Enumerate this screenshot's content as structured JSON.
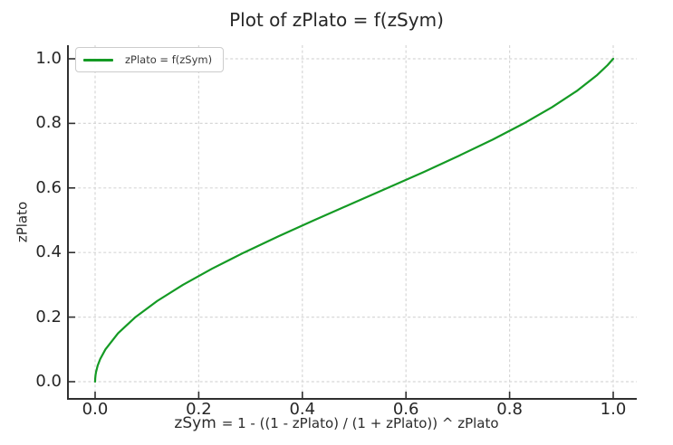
{
  "title": "Plot of zPlato = f(zSym)",
  "legend": {
    "label": "zPlato = f(zSym)"
  },
  "axes": {
    "xlabel_var": "zSym",
    "xlabel_rest": "= 1 - ((1 - zPlato) / (1 + zPlato)) ^ zPlato",
    "ylabel": "zPlato"
  },
  "colors": {
    "line_green": "#149a24",
    "grid": "#d7d7d7",
    "spine": "#303030",
    "tick": "#303030"
  },
  "chart_data": {
    "type": "line",
    "title": "Plot of zPlato = f(zSym)",
    "xlabel": "zSym = 1 - ((1 - zPlato) / (1 + zPlato)) ^ zPlato",
    "ylabel": "zPlato",
    "xlim": [
      -0.052,
      1.045
    ],
    "ylim": [
      -0.053,
      1.042
    ],
    "xticks": [
      0.0,
      0.2,
      0.4,
      0.6,
      0.8,
      1.0
    ],
    "yticks": [
      0.0,
      0.2,
      0.4,
      0.6,
      0.8,
      1.0
    ],
    "grid": true,
    "grid_style": "dashed",
    "legend_position": "upper left",
    "series": [
      {
        "name": "zPlato = f(zSym)",
        "color": "#149a24",
        "points": [
          [
            0.0,
            0.0
          ],
          [
            0.0002,
            0.01
          ],
          [
            0.0008,
            0.02
          ],
          [
            0.0018,
            0.03
          ],
          [
            0.005,
            0.05
          ],
          [
            0.0098,
            0.07
          ],
          [
            0.0199,
            0.1
          ],
          [
            0.0443,
            0.15
          ],
          [
            0.0779,
            0.2
          ],
          [
            0.1199,
            0.25
          ],
          [
            0.1695,
            0.3
          ],
          [
            0.2257,
            0.35
          ],
          [
            0.2875,
            0.4
          ],
          [
            0.3535,
            0.45
          ],
          [
            0.4226,
            0.5
          ],
          [
            0.4935,
            0.55
          ],
          [
            0.5647,
            0.6
          ],
          [
            0.6351,
            0.65
          ],
          [
            0.7027,
            0.7
          ],
          [
            0.7677,
            0.75
          ],
          [
            0.8276,
            0.8
          ],
          [
            0.8818,
            0.85
          ],
          [
            0.9294,
            0.9
          ],
          [
            0.9692,
            0.95
          ],
          [
            0.9889,
            0.98
          ],
          [
            1.0,
            1.0
          ]
        ]
      }
    ]
  }
}
